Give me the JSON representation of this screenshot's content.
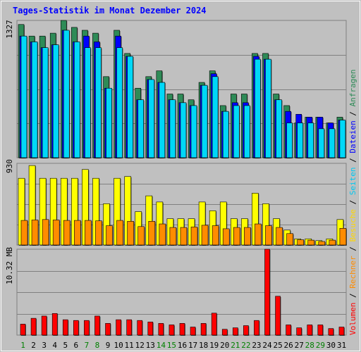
{
  "window": {
    "title": "Tages-Statistik im Monat Dezember 2024"
  },
  "colors": {
    "background": "#C0C0C0",
    "frame": "#FFFFFF",
    "grid": "#808080",
    "title": "#0000FF",
    "weekday_label": "#000000",
    "weekend_label": "#008000",
    "sep": "#000000"
  },
  "chart_data": [
    {
      "type": "bar",
      "panel": "top",
      "y_label": "1327",
      "ymax": 1327,
      "categories": [
        "1",
        "2",
        "3",
        "4",
        "5",
        "6",
        "7",
        "8",
        "9",
        "10",
        "11",
        "12",
        "13",
        "14",
        "15",
        "16",
        "17",
        "18",
        "19",
        "20",
        "21",
        "22",
        "23",
        "24",
        "25",
        "26",
        "27",
        "28",
        "29",
        "30",
        "31"
      ],
      "weekend_days": [
        1,
        7,
        8,
        14,
        15,
        21,
        22,
        28,
        29
      ],
      "series": [
        {
          "name": "Anfragen",
          "color": "#2E8B57",
          "values": [
            1320,
            1300,
            1300,
            1305,
            1327,
            1315,
            1310,
            1305,
            1230,
            1310,
            1270,
            1210,
            1230,
            1240,
            1200,
            1200,
            1190,
            1220,
            1240,
            1180,
            1200,
            1200,
            1270,
            1270,
            1200,
            1180,
            1150,
            1160,
            1160,
            1150,
            1160
          ]
        },
        {
          "name": "Dateien",
          "color": "#0000FF",
          "values": [
            1300,
            1290,
            1280,
            1285,
            1310,
            1290,
            1300,
            1290,
            1210,
            1300,
            1265,
            1190,
            1225,
            1220,
            1190,
            1185,
            1180,
            1215,
            1235,
            1170,
            1185,
            1185,
            1265,
            1260,
            1190,
            1170,
            1165,
            1160,
            1160,
            1150,
            1155
          ]
        },
        {
          "name": "Seiten",
          "color": "#00D8F8",
          "values": [
            1300,
            1290,
            1280,
            1285,
            1310,
            1290,
            1280,
            1280,
            1210,
            1280,
            1265,
            1190,
            1225,
            1220,
            1190,
            1185,
            1180,
            1215,
            1230,
            1170,
            1180,
            1180,
            1260,
            1260,
            1190,
            1150,
            1150,
            1150,
            1140,
            1140,
            1155
          ]
        }
      ]
    },
    {
      "type": "bar",
      "panel": "middle",
      "y_label": "930",
      "ymax": 930,
      "categories": [
        "1",
        "2",
        "3",
        "4",
        "5",
        "6",
        "7",
        "8",
        "9",
        "10",
        "11",
        "12",
        "13",
        "14",
        "15",
        "16",
        "17",
        "18",
        "19",
        "20",
        "21",
        "22",
        "23",
        "24",
        "25",
        "26",
        "27",
        "28",
        "29",
        "30",
        "31"
      ],
      "series": [
        {
          "name": "Besuche",
          "color": "#FFFF00",
          "values": [
            760,
            905,
            760,
            760,
            760,
            760,
            860,
            760,
            470,
            760,
            780,
            380,
            560,
            490,
            300,
            300,
            300,
            490,
            390,
            490,
            300,
            300,
            590,
            470,
            300,
            170,
            70,
            70,
            50,
            70,
            290
          ]
        },
        {
          "name": "Rechner",
          "color": "#FF8C00",
          "values": [
            280,
            285,
            290,
            285,
            280,
            280,
            280,
            275,
            220,
            280,
            270,
            210,
            270,
            240,
            200,
            200,
            205,
            225,
            220,
            185,
            200,
            200,
            240,
            220,
            200,
            130,
            60,
            55,
            40,
            55,
            190
          ]
        }
      ]
    },
    {
      "type": "bar",
      "panel": "bottom",
      "y_label": "10.32 MB",
      "ymax": 10.32,
      "categories": [
        "1",
        "2",
        "3",
        "4",
        "5",
        "6",
        "7",
        "8",
        "9",
        "10",
        "11",
        "12",
        "13",
        "14",
        "15",
        "16",
        "17",
        "18",
        "19",
        "20",
        "21",
        "22",
        "23",
        "24",
        "25",
        "26",
        "27",
        "28",
        "29",
        "30",
        "31"
      ],
      "series": [
        {
          "name": "Volumen",
          "color": "#FF0000",
          "values": [
            1.32,
            2.02,
            2.29,
            2.6,
            1.85,
            1.76,
            1.76,
            2.29,
            1.41,
            1.85,
            1.85,
            1.76,
            1.58,
            1.41,
            1.23,
            1.41,
            0.97,
            1.41,
            2.64,
            0.7,
            0.88,
            1.14,
            1.76,
            10.32,
            4.67,
            1.23,
            0.88,
            1.23,
            1.23,
            0.79,
            0.97
          ]
        }
      ]
    }
  ],
  "legend": {
    "items": [
      {
        "text": "Volumen",
        "color": "#FF0000"
      },
      {
        "text": "Rechner",
        "color": "#FF8C00"
      },
      {
        "text": "Besuche",
        "color": "#FFD700"
      },
      {
        "text": "Seiten",
        "color": "#00C8F0"
      },
      {
        "text": "Dateien",
        "color": "#0000FF"
      },
      {
        "text": "Anfragen",
        "color": "#2E8B57"
      }
    ],
    "separator": " / "
  }
}
